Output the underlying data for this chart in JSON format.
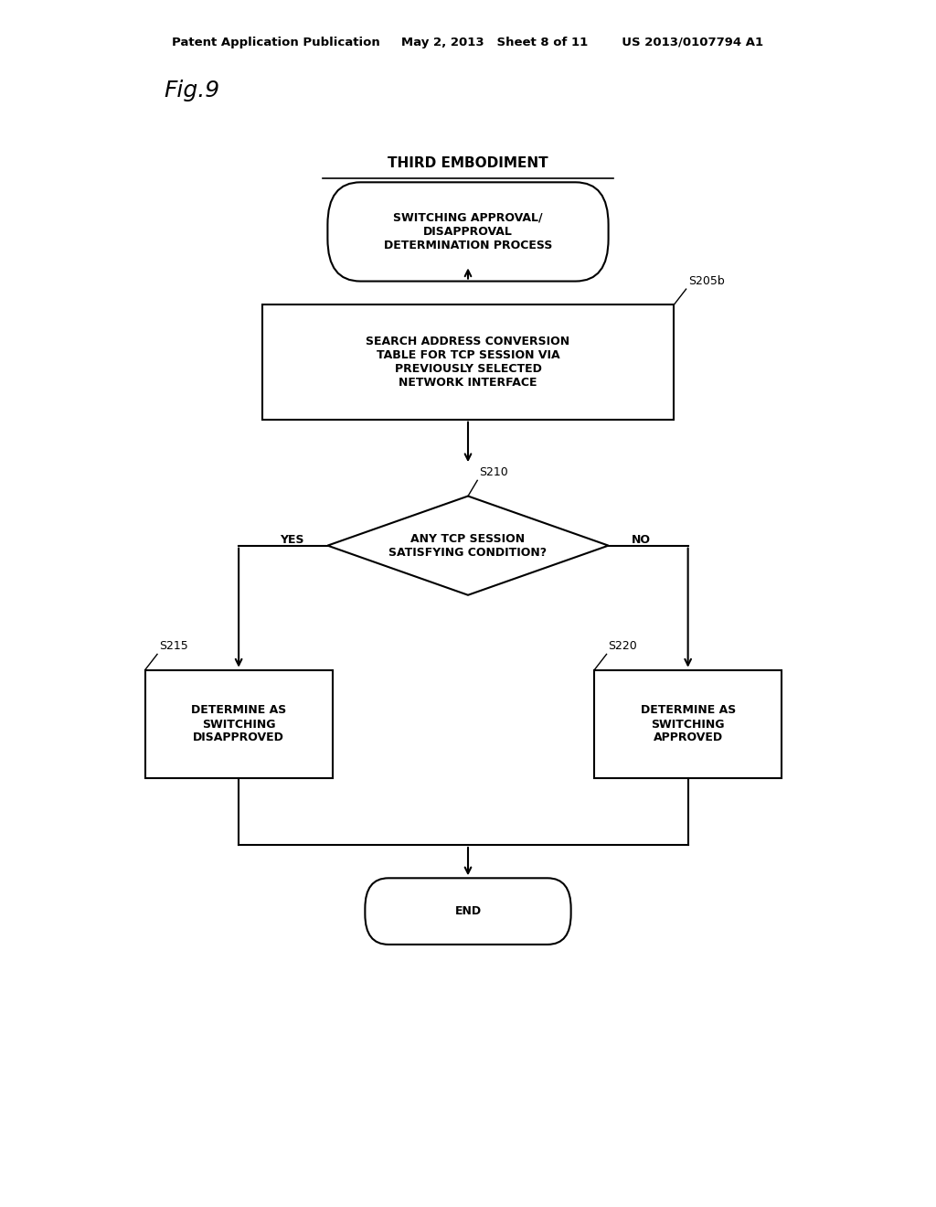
{
  "bg_color": "#ffffff",
  "header_text": "Patent Application Publication     May 2, 2013   Sheet 8 of 11        US 2013/0107794 A1",
  "fig_label": "Fig.9",
  "title_text": "THIRD EMBODIMENT",
  "line_color": "#000000",
  "text_color": "#000000",
  "font_size_header": 9.5,
  "font_size_fig": 18,
  "font_size_title": 11,
  "font_size_node": 9,
  "font_size_label": 9
}
